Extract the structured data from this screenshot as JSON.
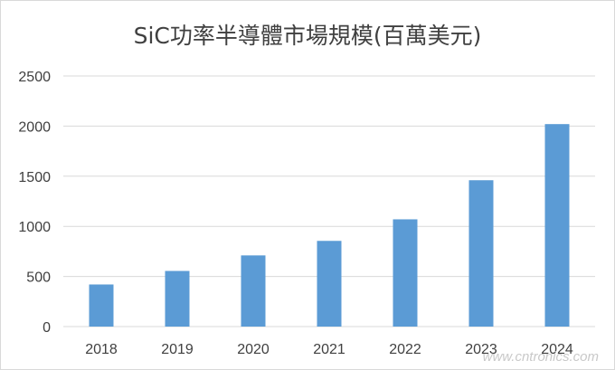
{
  "chart_data": {
    "type": "bar",
    "title": "SiC功率半導體市場規模(百萬美元)",
    "xlabel": "",
    "ylabel": "",
    "categories": [
      "2018",
      "2019",
      "2020",
      "2021",
      "2022",
      "2023",
      "2024"
    ],
    "values": [
      420,
      555,
      710,
      855,
      1070,
      1460,
      2020
    ],
    "ylim": [
      0,
      2500
    ],
    "yticks": [
      0,
      500,
      1000,
      1500,
      2000,
      2500
    ],
    "grid": true,
    "legend": "none",
    "bar_color": "#5b9bd5",
    "grid_color": "#d9d9d9"
  },
  "watermark": "www.cntronics.com"
}
